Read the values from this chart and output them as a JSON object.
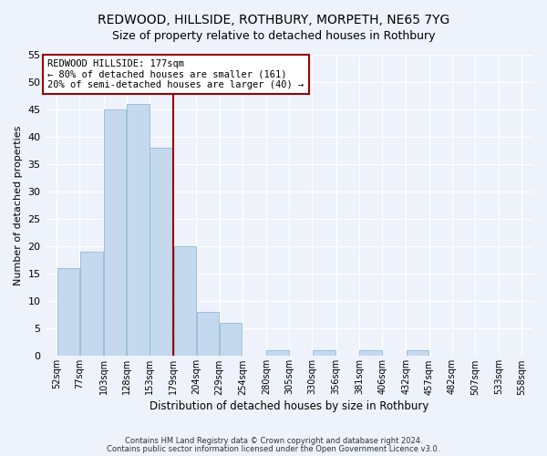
{
  "title1": "REDWOOD, HILLSIDE, ROTHBURY, MORPETH, NE65 7YG",
  "title2": "Size of property relative to detached houses in Rothbury",
  "xlabel": "Distribution of detached houses by size in Rothbury",
  "ylabel": "Number of detached properties",
  "footer1": "Contains HM Land Registry data © Crown copyright and database right 2024.",
  "footer2": "Contains public sector information licensed under the Open Government Licence v3.0.",
  "annotation_title": "REDWOOD HILLSIDE: 177sqm",
  "annotation_line1": "← 80% of detached houses are smaller (161)",
  "annotation_line2": "20% of semi-detached houses are larger (40) →",
  "bar_values": [
    16,
    19,
    45,
    46,
    38,
    20,
    8,
    6,
    0,
    1,
    0,
    1,
    0,
    1,
    0,
    1,
    0,
    0,
    0,
    0
  ],
  "bin_edges": [
    52,
    77,
    103,
    128,
    153,
    179,
    204,
    229,
    254,
    280,
    305,
    330,
    356,
    381,
    406,
    432,
    457,
    482,
    507,
    533,
    558
  ],
  "bin_labels": [
    "52sqm",
    "77sqm",
    "103sqm",
    "128sqm",
    "153sqm",
    "179sqm",
    "204sqm",
    "229sqm",
    "254sqm",
    "280sqm",
    "305sqm",
    "330sqm",
    "356sqm",
    "381sqm",
    "406sqm",
    "432sqm",
    "457sqm",
    "482sqm",
    "507sqm",
    "533sqm",
    "558sqm"
  ],
  "bar_color": "#c5d9ee",
  "bar_edge_color": "#90b8d8",
  "vline_color": "#990000",
  "annotation_box_edgecolor": "#990000",
  "yticks": [
    0,
    5,
    10,
    15,
    20,
    25,
    30,
    35,
    40,
    45,
    50,
    55
  ],
  "ylim": [
    0,
    55
  ],
  "background_color": "#edf2fb",
  "grid_color": "#ffffff",
  "title1_fontsize": 10,
  "title2_fontsize": 9,
  "annotation_fontsize": 7.5,
  "ylabel_fontsize": 8,
  "xlabel_fontsize": 8.5,
  "ytick_fontsize": 8,
  "xtick_fontsize": 7
}
